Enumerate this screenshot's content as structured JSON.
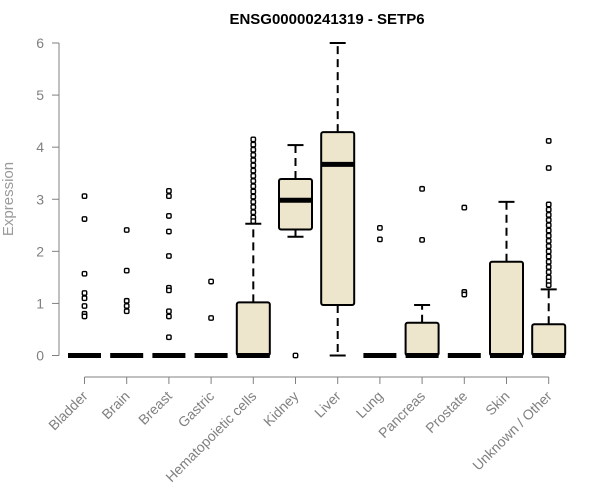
{
  "chart_data": {
    "type": "boxplot",
    "title": "ENSG00000241319 - SETP6",
    "xlabel": "",
    "ylabel": "Expression",
    "ylim": [
      0,
      6
    ],
    "yticks": [
      0,
      1,
      2,
      3,
      4,
      5,
      6
    ],
    "grid": false,
    "box_fill": "#ede6cd",
    "categories": [
      "Bladder",
      "Brain",
      "Breast",
      "Gastric",
      "Hematopoietic cells",
      "Kidney",
      "Liver",
      "Lung",
      "Pancreas",
      "Prostate",
      "Skin",
      "Unknown / Other"
    ],
    "boxes": [
      {
        "category": "Bladder",
        "whisker_low": 0,
        "q1": 0,
        "median": 0,
        "q3": 0,
        "whisker_high": 0,
        "outliers": [
          3.06,
          2.62,
          1.57,
          1.2,
          1.1,
          0.95,
          0.8,
          0.75
        ]
      },
      {
        "category": "Brain",
        "whisker_low": 0,
        "q1": 0,
        "median": 0,
        "q3": 0,
        "whisker_high": 0,
        "outliers": [
          2.41,
          1.63,
          1.05,
          0.95,
          0.85
        ]
      },
      {
        "category": "Breast",
        "whisker_low": 0,
        "q1": 0,
        "median": 0,
        "q3": 0,
        "whisker_high": 0,
        "outliers": [
          3.16,
          3.06,
          2.68,
          2.38,
          1.91,
          1.3,
          1.25,
          0.85,
          0.75,
          0.35
        ]
      },
      {
        "category": "Gastric",
        "whisker_low": 0,
        "q1": 0,
        "median": 0,
        "q3": 0,
        "whisker_high": 0,
        "outliers": [
          1.42,
          0.72
        ]
      },
      {
        "category": "Hematopoietic cells",
        "whisker_low": 0,
        "q1": 0,
        "median": 0,
        "q3": 1.02,
        "whisker_high": 2.53,
        "outliers": [
          4.15,
          4.05,
          3.95,
          3.85,
          3.75,
          3.65,
          3.55,
          3.45,
          3.35,
          3.25,
          3.15,
          3.05,
          2.95,
          2.85,
          2.75,
          2.65,
          2.58
        ]
      },
      {
        "category": "Kidney",
        "whisker_low": 2.28,
        "q1": 2.42,
        "median": 2.98,
        "q3": 3.39,
        "whisker_high": 4.04,
        "outliers": [
          0
        ]
      },
      {
        "category": "Liver",
        "whisker_low": 0,
        "q1": 0.97,
        "median": 3.67,
        "q3": 4.29,
        "whisker_high": 6.0,
        "outliers": []
      },
      {
        "category": "Lung",
        "whisker_low": 0,
        "q1": 0,
        "median": 0,
        "q3": 0,
        "whisker_high": 0,
        "outliers": [
          2.45,
          2.23
        ]
      },
      {
        "category": "Pancreas",
        "whisker_low": 0,
        "q1": 0,
        "median": 0,
        "q3": 0.63,
        "whisker_high": 0.97,
        "outliers": [
          3.2,
          2.22
        ]
      },
      {
        "category": "Prostate",
        "whisker_low": 0,
        "q1": 0,
        "median": 0,
        "q3": 0,
        "whisker_high": 0,
        "outliers": [
          2.84,
          1.22,
          1.17
        ]
      },
      {
        "category": "Skin",
        "whisker_low": 0,
        "q1": 0,
        "median": 0,
        "q3": 1.8,
        "whisker_high": 2.95,
        "outliers": []
      },
      {
        "category": "Unknown / Other",
        "whisker_low": 0,
        "q1": 0,
        "median": 0,
        "q3": 0.6,
        "whisker_high": 1.27,
        "outliers": [
          4.12,
          3.6,
          2.9,
          2.8,
          2.7,
          2.6,
          2.5,
          2.4,
          2.3,
          2.2,
          2.1,
          2.0,
          1.9,
          1.8,
          1.7,
          1.6,
          1.5,
          1.42,
          1.35
        ]
      }
    ]
  }
}
